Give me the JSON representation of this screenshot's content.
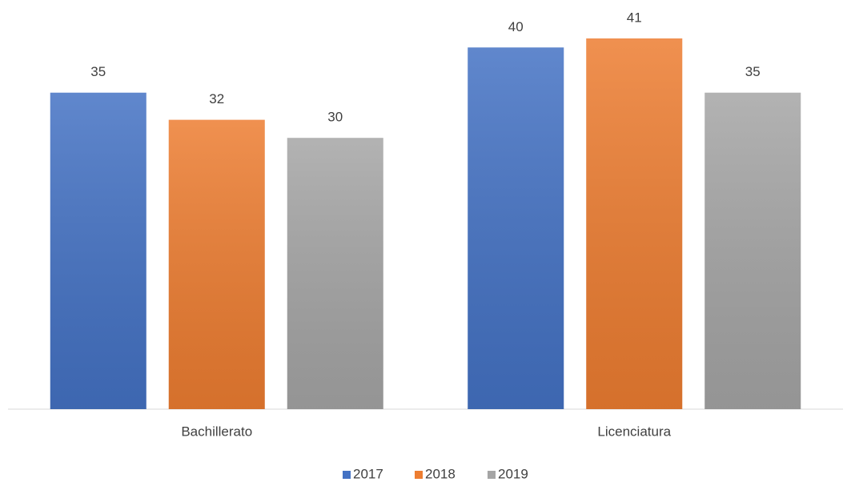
{
  "chart_data": {
    "type": "bar",
    "categories": [
      "Bachillerato",
      "Licenciatura"
    ],
    "series": [
      {
        "name": "2017",
        "color": "#4472c4",
        "values": [
          35,
          40
        ]
      },
      {
        "name": "2018",
        "color": "#ed7d31",
        "values": [
          32,
          41
        ]
      },
      {
        "name": "2019",
        "color": "#a5a5a5",
        "values": [
          30,
          35
        ]
      }
    ],
    "legend": "bottom"
  }
}
